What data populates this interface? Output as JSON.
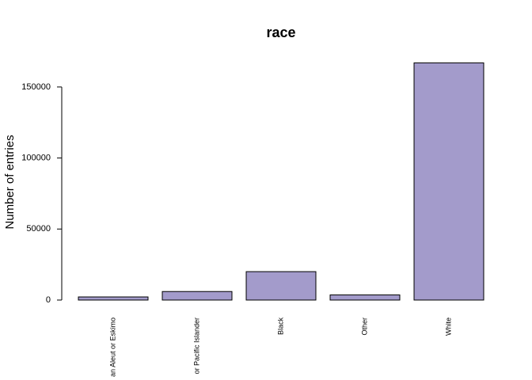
{
  "chart_data": {
    "type": "bar",
    "title": "race",
    "y_label": "Number of entries",
    "categories": [
      "an Aleut or Eskimo",
      "or Pacific Islander",
      "Black",
      "Other",
      "White"
    ],
    "values": [
      2200,
      6000,
      20000,
      3600,
      167000
    ],
    "color": "#a39bcb",
    "ylim": [
      0,
      170000
    ],
    "yticks": [
      0,
      50000,
      100000,
      150000
    ]
  }
}
